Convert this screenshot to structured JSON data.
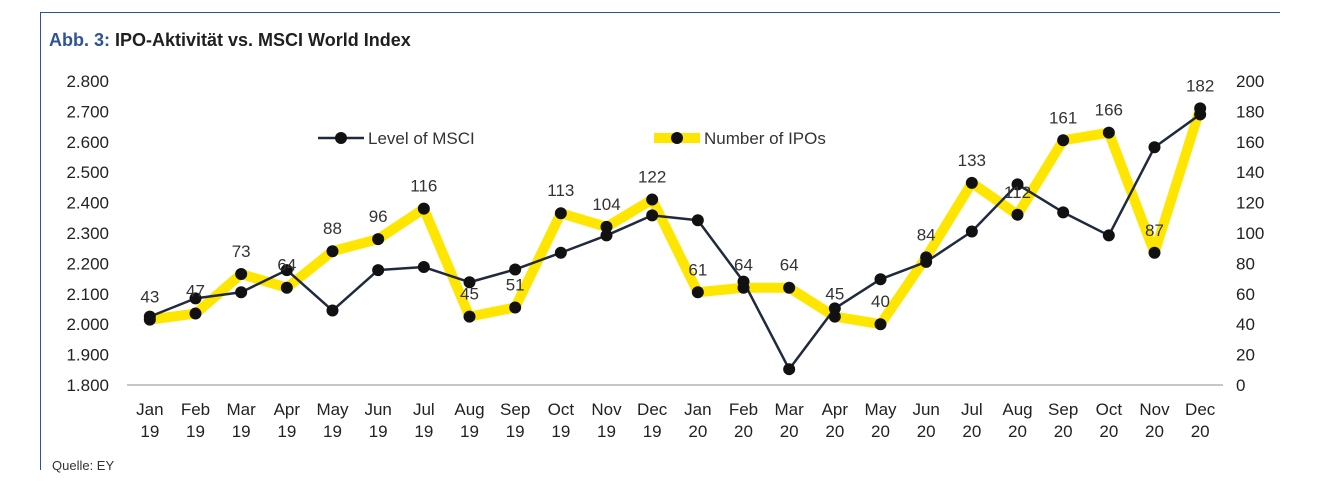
{
  "title": {
    "prefix": "Abb. 3:",
    "text": "IPO-Aktivität vs. MSCI World Index"
  },
  "source": "Quelle: EY",
  "chart_data": {
    "type": "line",
    "categories": [
      [
        "Jan",
        "19"
      ],
      [
        "Feb",
        "19"
      ],
      [
        "Mar",
        "19"
      ],
      [
        "Apr",
        "19"
      ],
      [
        "May",
        "19"
      ],
      [
        "Jun",
        "19"
      ],
      [
        "Jul",
        "19"
      ],
      [
        "Aug",
        "19"
      ],
      [
        "Sep",
        "19"
      ],
      [
        "Oct",
        "19"
      ],
      [
        "Nov",
        "19"
      ],
      [
        "Dec",
        "19"
      ],
      [
        "Jan",
        "20"
      ],
      [
        "Feb",
        "20"
      ],
      [
        "Mar",
        "20"
      ],
      [
        "Apr",
        "20"
      ],
      [
        "May",
        "20"
      ],
      [
        "Jun",
        "20"
      ],
      [
        "Jul",
        "20"
      ],
      [
        "Aug",
        "20"
      ],
      [
        "Sep",
        "20"
      ],
      [
        "Oct",
        "20"
      ],
      [
        "Nov",
        "20"
      ],
      [
        "Dec",
        "20"
      ]
    ],
    "y_left": {
      "min": 1800,
      "max": 2800,
      "step": 100,
      "tick_labels": [
        "1.800",
        "1.900",
        "2.000",
        "2.100",
        "2.200",
        "2.300",
        "2.400",
        "2.500",
        "2.600",
        "2.700",
        "2.800"
      ]
    },
    "y_right": {
      "min": 0,
      "max": 200,
      "step": 20,
      "tick_labels": [
        "0",
        "20",
        "40",
        "60",
        "80",
        "100",
        "120",
        "140",
        "160",
        "180",
        "200"
      ]
    },
    "legend_placement": "top",
    "grid": false,
    "series": [
      {
        "name": "Level of MSCI",
        "axis": "left",
        "color": "#1f2a3c",
        "values": [
          2025,
          2085,
          2105,
          2178,
          2045,
          2178,
          2188,
          2138,
          2180,
          2235,
          2292,
          2358,
          2342,
          2140,
          1852,
          2052,
          2148,
          2205,
          2305,
          2460,
          2368,
          2292,
          2582,
          2690
        ]
      },
      {
        "name": "Number of IPOs",
        "axis": "right",
        "color": "#ffe600",
        "values": [
          43,
          47,
          73,
          64,
          88,
          96,
          116,
          45,
          51,
          113,
          104,
          122,
          61,
          64,
          64,
          45,
          40,
          84,
          133,
          112,
          161,
          166,
          87,
          182
        ],
        "data_labels": [
          "43",
          "47",
          "73",
          "64",
          "88",
          "96",
          "116",
          "45",
          "51",
          "113",
          "104",
          "122",
          "61",
          "64",
          "64",
          "45",
          "40",
          "84",
          "133",
          "112",
          "161",
          "166",
          "87",
          "182"
        ]
      }
    ]
  }
}
